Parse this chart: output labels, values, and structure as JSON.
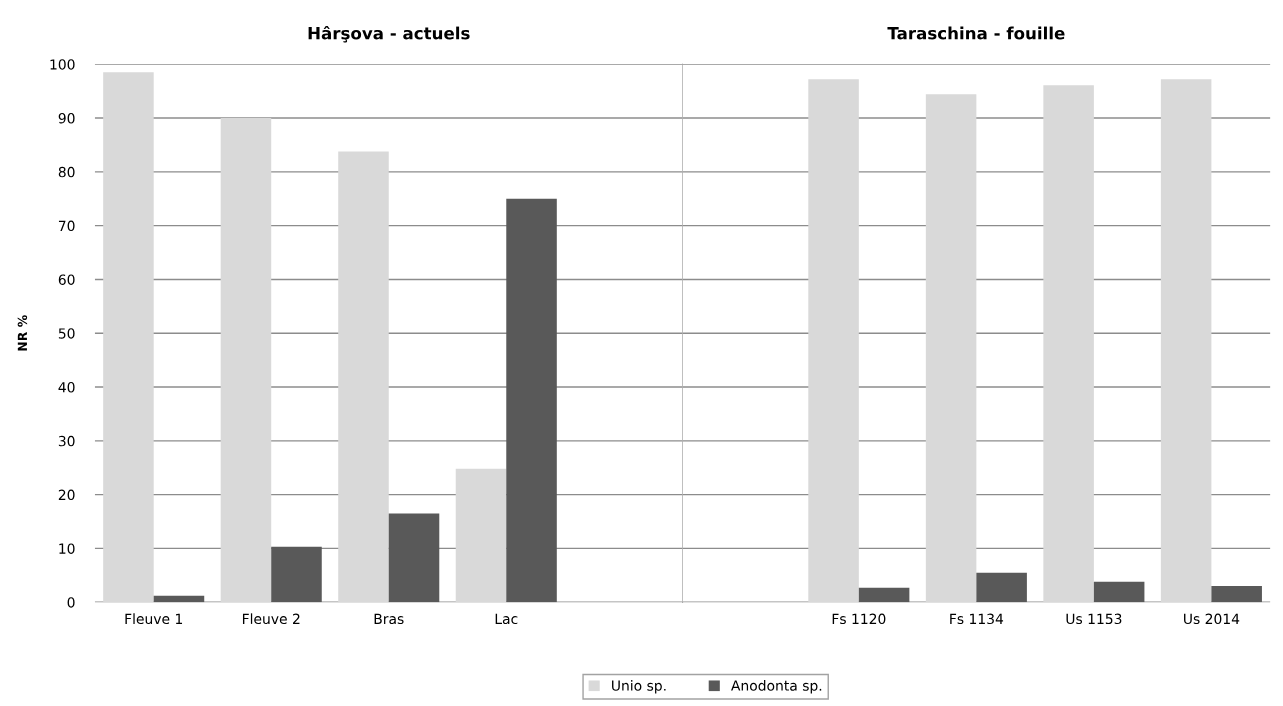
{
  "chart_data": [
    {
      "type": "bar",
      "title": "Hârşova - actuels",
      "ylabel": "NR %",
      "categories": [
        "Fleuve 1",
        "Fleuve 2",
        "Bras",
        "Lac",
        null
      ],
      "series": [
        {
          "name": "Unio sp.",
          "color": "#d9d9d9",
          "values": [
            98.5,
            90,
            83.8,
            24.8,
            null
          ]
        },
        {
          "name": "Anodonta sp.",
          "color": "#595959",
          "values": [
            1.2,
            10.3,
            16.5,
            75,
            null
          ]
        }
      ],
      "ylim": [
        0,
        100
      ],
      "yticks": [
        0,
        10,
        20,
        30,
        40,
        50,
        60,
        70,
        80,
        90,
        100
      ],
      "grid": "y",
      "legend": "bottom"
    },
    {
      "type": "bar",
      "title": "Taraschina - fouille",
      "categories": [
        null,
        "Fs 1120",
        "Fs 1134",
        "Us 1153",
        "Us 2014"
      ],
      "series": [
        {
          "name": "Unio sp.",
          "color": "#d9d9d9",
          "values": [
            null,
            97.2,
            94.4,
            96.1,
            97.2
          ]
        },
        {
          "name": "Anodonta sp.",
          "color": "#595959",
          "values": [
            null,
            2.7,
            5.5,
            3.8,
            3
          ]
        }
      ],
      "ylim": [
        0,
        100
      ],
      "yticks": [
        0,
        10,
        20,
        30,
        40,
        50,
        60,
        70,
        80,
        90,
        100
      ],
      "grid": "y",
      "tick_labels": "x"
    }
  ]
}
